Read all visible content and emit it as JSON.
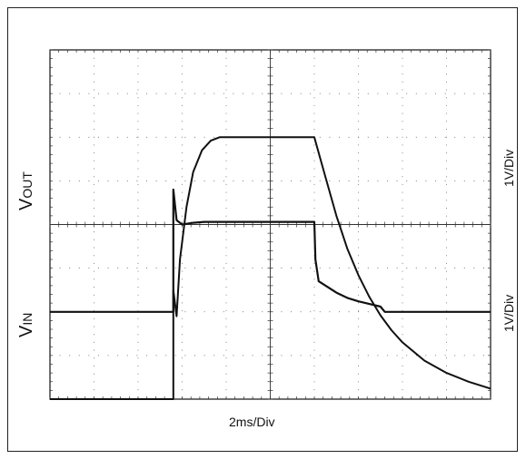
{
  "chart_data": {
    "type": "line",
    "title": "",
    "xlabel": "2ms/Div",
    "grid": true,
    "divisions": {
      "x": 10,
      "y": 8
    },
    "x_unit": "ms",
    "xlim": [
      0,
      20
    ],
    "series": [
      {
        "name": "V",
        "subscript": "OUT",
        "scale_label": "1V/Div",
        "ylim": [
          0,
          4
        ],
        "x": [
          0,
          5.6,
          5.6,
          5.75,
          5.9,
          6.2,
          6.5,
          6.9,
          7.3,
          7.7,
          8.0,
          12.0,
          12.5,
          13.0,
          13.5,
          14.0,
          14.5,
          15.0,
          15.5,
          16.0,
          17.0,
          18.0,
          19.0,
          20.0
        ],
        "values": [
          0,
          0,
          1.25,
          0.95,
          1.6,
          2.2,
          2.6,
          2.85,
          2.96,
          3.0,
          3.0,
          3.0,
          2.55,
          2.1,
          1.72,
          1.42,
          1.17,
          0.96,
          0.79,
          0.65,
          0.44,
          0.3,
          0.2,
          0.12
        ]
      },
      {
        "name": "V",
        "subscript": "IN",
        "scale_label": "1V/Div",
        "ylim": [
          -1,
          3
        ],
        "x": [
          0,
          5.6,
          5.6,
          5.75,
          6.0,
          6.5,
          7.0,
          8.0,
          9.0,
          10.0,
          11.0,
          12.0,
          12.05,
          12.2,
          13.0,
          13.5,
          14.0,
          14.5,
          15.0,
          15.2,
          16.0,
          17.0,
          18.0,
          19.0,
          20.0
        ],
        "values": [
          0,
          0,
          1.4,
          1.05,
          1.0,
          1.02,
          1.03,
          1.03,
          1.03,
          1.03,
          1.03,
          1.03,
          0.6,
          0.35,
          0.22,
          0.16,
          0.12,
          0.09,
          0.06,
          0.0,
          0.0,
          0.0,
          0.0,
          0.0,
          0.0
        ]
      }
    ]
  },
  "colors": {
    "trace": "#111111",
    "grid": "#555555",
    "frame": "#111111"
  }
}
